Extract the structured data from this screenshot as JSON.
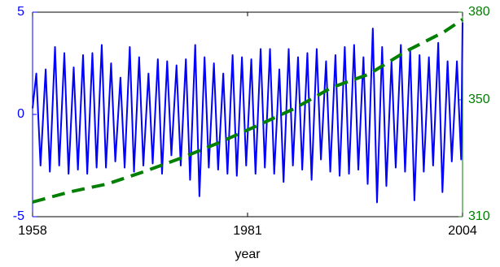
{
  "chart_data": {
    "type": "line",
    "xlabel": "year",
    "xlim": [
      1958,
      2004
    ],
    "xticks": [
      1958,
      1981,
      2004
    ],
    "ylim": [
      -5,
      5
    ],
    "yticks": [
      -5,
      0,
      5
    ],
    "y2lim": [
      310,
      380
    ],
    "y2ticks": [
      310,
      350,
      380
    ],
    "series": [
      {
        "color": "#0000ff",
        "line_style": "solid",
        "x": [
          1958,
          1958.4,
          1958.85,
          1959.4,
          1959.85,
          1960.4,
          1960.85,
          1961.4,
          1961.85,
          1962.4,
          1962.85,
          1963.4,
          1963.85,
          1964.4,
          1964.85,
          1965.4,
          1965.85,
          1966.4,
          1966.85,
          1967.4,
          1967.85,
          1968.4,
          1968.85,
          1969.4,
          1969.85,
          1970.4,
          1970.85,
          1971.4,
          1971.85,
          1972.4,
          1972.85,
          1973.4,
          1973.85,
          1974.4,
          1974.85,
          1975.4,
          1975.85,
          1976.4,
          1976.85,
          1977.4,
          1977.85,
          1978.4,
          1978.85,
          1979.4,
          1979.85,
          1980.4,
          1980.85,
          1981.4,
          1981.85,
          1982.4,
          1982.85,
          1983.4,
          1983.85,
          1984.4,
          1984.85,
          1985.4,
          1985.85,
          1986.4,
          1986.85,
          1987.4,
          1987.85,
          1988.4,
          1988.85,
          1989.4,
          1989.85,
          1990.4,
          1990.85,
          1991.4,
          1991.85,
          1992.4,
          1992.85,
          1993.4,
          1993.85,
          1994.4,
          1994.85,
          1995.4,
          1995.85,
          1996.4,
          1996.85,
          1997.4,
          1997.85,
          1998.4,
          1998.85,
          1999.4,
          1999.85,
          2000.4,
          2000.85,
          2001.4,
          2001.85,
          2002.4,
          2002.85,
          2003.4,
          2003.85,
          2004
        ],
        "values": [
          0.3,
          2.0,
          -2.5,
          2.2,
          -2.8,
          3.3,
          -2.5,
          3.0,
          -2.9,
          2.3,
          -2.7,
          2.9,
          -2.9,
          3.0,
          -2.6,
          3.4,
          -2.6,
          2.5,
          -2.3,
          1.8,
          -2.6,
          3.3,
          -2.8,
          2.8,
          -2.5,
          2.0,
          -2.4,
          2.7,
          -2.9,
          2.6,
          -2.0,
          2.4,
          -2.5,
          2.7,
          -3.2,
          3.4,
          -4.0,
          2.8,
          -2.6,
          2.5,
          -2.7,
          2.0,
          -2.9,
          2.9,
          -3.0,
          2.8,
          -2.5,
          2.7,
          -2.9,
          3.2,
          -2.6,
          3.2,
          -2.9,
          2.2,
          -3.3,
          3.2,
          -2.5,
          2.8,
          -2.7,
          3.0,
          -3.2,
          3.2,
          -2.2,
          2.6,
          -2.8,
          2.9,
          -3.0,
          3.3,
          -2.9,
          3.4,
          -2.7,
          2.8,
          -3.4,
          4.2,
          -4.3,
          3.3,
          -3.5,
          2.6,
          -2.6,
          3.4,
          -2.8,
          3.1,
          -4.2,
          2.9,
          -2.8,
          2.8,
          -2.5,
          3.5,
          -3.8,
          2.6,
          -2.3,
          2.6,
          -2.2,
          4.5
        ]
      },
      {
        "color": "#007f00",
        "line_style": "dashed",
        "axis": "y2",
        "x": [
          1958,
          1962,
          1966,
          1970,
          1974,
          1978,
          1982,
          1986,
          1990,
          1994,
          1998,
          2002,
          2004
        ],
        "values": [
          315.0,
          318.5,
          321.2,
          325.5,
          330.2,
          335.4,
          341.1,
          347.0,
          354.2,
          358.8,
          366.7,
          373.2,
          377.5
        ]
      }
    ]
  }
}
